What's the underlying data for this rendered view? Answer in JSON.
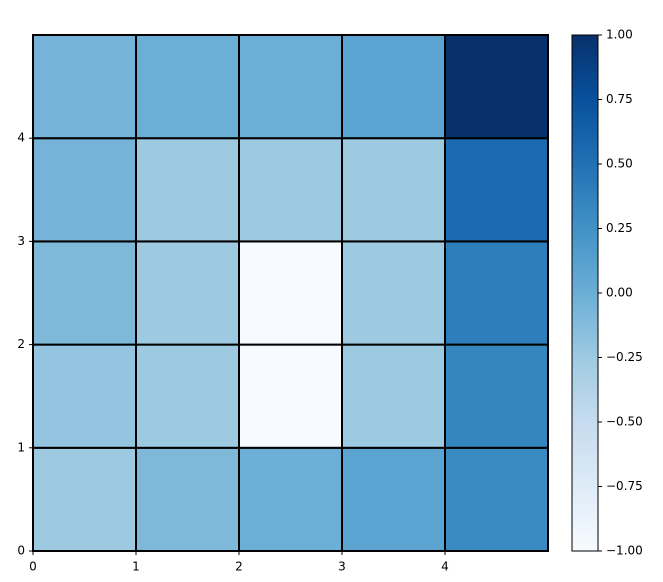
{
  "chart_data": {
    "type": "heatmap",
    "colormap": "Blues",
    "edgecolor": "#000000",
    "xlim": [
      0,
      5
    ],
    "ylim": [
      0,
      5
    ],
    "xticks": [
      0,
      1,
      2,
      3,
      4
    ],
    "yticks": [
      0,
      1,
      2,
      3,
      4
    ],
    "values": [
      [
        -0.25,
        -0.1,
        0.0,
        0.1,
        0.3
      ],
      [
        -0.2,
        -0.25,
        -1.0,
        -0.25,
        0.35
      ],
      [
        -0.1,
        -0.25,
        -1.0,
        -0.25,
        0.4
      ],
      [
        -0.05,
        -0.25,
        -0.25,
        -0.25,
        0.55
      ],
      [
        -0.05,
        0.0,
        0.0,
        0.1,
        1.0
      ]
    ],
    "colorbar": {
      "lim": [
        -1,
        1
      ],
      "ticks": [
        {
          "value": -1,
          "label": "−1.00"
        },
        {
          "value": -0.75,
          "label": "−0.75"
        },
        {
          "value": -0.5,
          "label": "−0.50"
        },
        {
          "value": -0.25,
          "label": "−0.25"
        },
        {
          "value": 0,
          "label": "0.00"
        },
        {
          "value": 0.25,
          "label": "0.25"
        },
        {
          "value": 0.5,
          "label": "0.50"
        },
        {
          "value": 0.75,
          "label": "0.75"
        },
        {
          "value": 1,
          "label": "1.00"
        }
      ]
    }
  }
}
